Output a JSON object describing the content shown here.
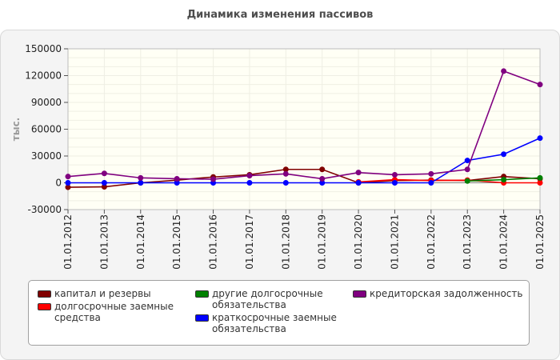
{
  "title": "Динамика изменения пассивов",
  "chart_data": {
    "type": "line",
    "categories": [
      "01.01.2012",
      "01.01.2013",
      "01.01.2014",
      "01.01.2015",
      "01.01.2016",
      "01.01.2017",
      "01.01.2018",
      "01.01.2019",
      "01.01.2020",
      "01.01.2021",
      "01.01.2022",
      "01.01.2023",
      "01.01.2024",
      "01.01.2025"
    ],
    "ylabel": "тыс.",
    "ylim": [
      -30000,
      150000
    ],
    "yticks": [
      "-30000",
      "0",
      "30000",
      "60000",
      "90000",
      "120000",
      "150000"
    ],
    "grid": true,
    "legend_position": "bottom",
    "series": [
      {
        "name": "капитал и резервы",
        "color": "#800000",
        "values": [
          -5000,
          -4500,
          0,
          3000,
          6500,
          9000,
          15000,
          15000,
          0,
          2500,
          3000,
          2500,
          7000,
          4500
        ]
      },
      {
        "name": "долгосрочные заемные средства",
        "color": "#ff0000",
        "values": [
          null,
          null,
          null,
          null,
          null,
          null,
          null,
          null,
          1000,
          3500,
          2500,
          3000,
          0,
          0
        ]
      },
      {
        "name": "другие долгосрочные обязательства",
        "color": "#008000",
        "values": [
          null,
          null,
          null,
          null,
          null,
          null,
          null,
          null,
          null,
          null,
          null,
          2000,
          3500,
          5500
        ]
      },
      {
        "name": "краткосрочные заемные обязательства",
        "color": "#0000ff",
        "values": [
          0,
          0,
          0,
          0,
          0,
          0,
          0,
          0,
          0,
          0,
          0,
          25000,
          32000,
          50000
        ]
      },
      {
        "name": "кредиторская задолженность",
        "color": "#800080",
        "values": [
          7000,
          10500,
          5500,
          4500,
          4000,
          8000,
          10000,
          4500,
          11500,
          9000,
          10000,
          15000,
          125000,
          110000
        ]
      }
    ]
  },
  "legend": {
    "items": [
      {
        "label": "капитал и резервы",
        "color": "#800000"
      },
      {
        "label": "долгосрочные заемные\nсредства",
        "color": "#ff0000"
      },
      {
        "label": "другие долгосрочные\nобязательства",
        "color": "#008000"
      },
      {
        "label": "краткосрочные заемные\nобязательства",
        "color": "#0000ff"
      },
      {
        "label": "кредиторская задолженность",
        "color": "#800080"
      }
    ]
  }
}
